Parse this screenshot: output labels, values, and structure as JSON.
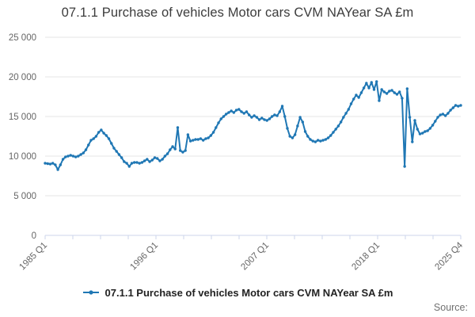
{
  "header": {
    "title": "07.1.1 Purchase of vehicles Motor cars CVM NAYear SA £m"
  },
  "legend": {
    "label": "07.1.1 Purchase of vehicles Motor cars CVM NAYear SA £m"
  },
  "footer": {
    "source": "Source:"
  },
  "colors": {
    "series": "#1f77b4",
    "axis_line": "#ccd6eb",
    "gridline": "#e6e6e6",
    "tick_label": "#666666",
    "title_text": "#3c3c3c"
  },
  "chart_data": {
    "type": "line",
    "title": "07.1.1 Purchase of vehicles Motor cars CVM NAYear SA £m",
    "x_frequency": "quarterly",
    "x_start": "1985 Q1",
    "x_end": "2025 Q4",
    "x_tick_labels": [
      "1985 Q1",
      "1996 Q1",
      "2007 Q1",
      "2018 Q1",
      "2025 Q4"
    ],
    "x_labeled_tick_indices": [
      0,
      4,
      8,
      12,
      15
    ],
    "x_total_ticks": 16,
    "y_tick_labels": [
      "25 000",
      "20 000",
      "15 000",
      "10 000",
      "5 000",
      "0"
    ],
    "y_tick_values": [
      25000,
      20000,
      15000,
      10000,
      5000,
      0
    ],
    "ylim": [
      0,
      25000
    ],
    "grid": true,
    "legend_position": "bottom",
    "series": [
      {
        "name": "07.1.1 Purchase of vehicles Motor cars CVM NAYear SA £m",
        "color": "#1f77b4",
        "values": [
          9100,
          9050,
          9000,
          9100,
          8900,
          8300,
          8900,
          9600,
          9900,
          10000,
          10100,
          10000,
          9900,
          10000,
          10200,
          10400,
          10800,
          11400,
          12000,
          12200,
          12500,
          13000,
          13300,
          12900,
          12600,
          12200,
          11600,
          11000,
          10600,
          10200,
          9800,
          9300,
          9100,
          8700,
          9100,
          9200,
          9200,
          9100,
          9200,
          9400,
          9600,
          9300,
          9500,
          9800,
          9700,
          9400,
          9600,
          10000,
          10300,
          10800,
          11200,
          10900,
          13600,
          10700,
          10500,
          10700,
          12700,
          11900,
          12000,
          12100,
          12100,
          12200,
          12000,
          12200,
          12300,
          12600,
          13000,
          13600,
          14200,
          14700,
          15000,
          15300,
          15500,
          15700,
          15500,
          15800,
          15900,
          15600,
          15400,
          15600,
          15200,
          14900,
          15100,
          14900,
          14600,
          14800,
          14600,
          14500,
          14700,
          15000,
          15200,
          15100,
          15600,
          16300,
          15000,
          13500,
          12500,
          12300,
          12700,
          13800,
          14900,
          14300,
          13100,
          12500,
          12100,
          11900,
          11800,
          12000,
          11900,
          12000,
          12100,
          12300,
          12600,
          13000,
          13400,
          13800,
          14300,
          14900,
          15400,
          15900,
          16600,
          17200,
          17700,
          17400,
          18000,
          18600,
          19200,
          18600,
          19300,
          18400,
          19400,
          17000,
          18400,
          18100,
          17900,
          18200,
          18300,
          18000,
          17800,
          18100,
          17300,
          8700,
          18500,
          14900,
          11800,
          14500,
          13400,
          12800,
          12900,
          13100,
          13200,
          13500,
          13900,
          14400,
          14900,
          15200,
          15300,
          15100,
          15400,
          15800,
          16100,
          16400,
          16300,
          16400
        ]
      }
    ]
  }
}
